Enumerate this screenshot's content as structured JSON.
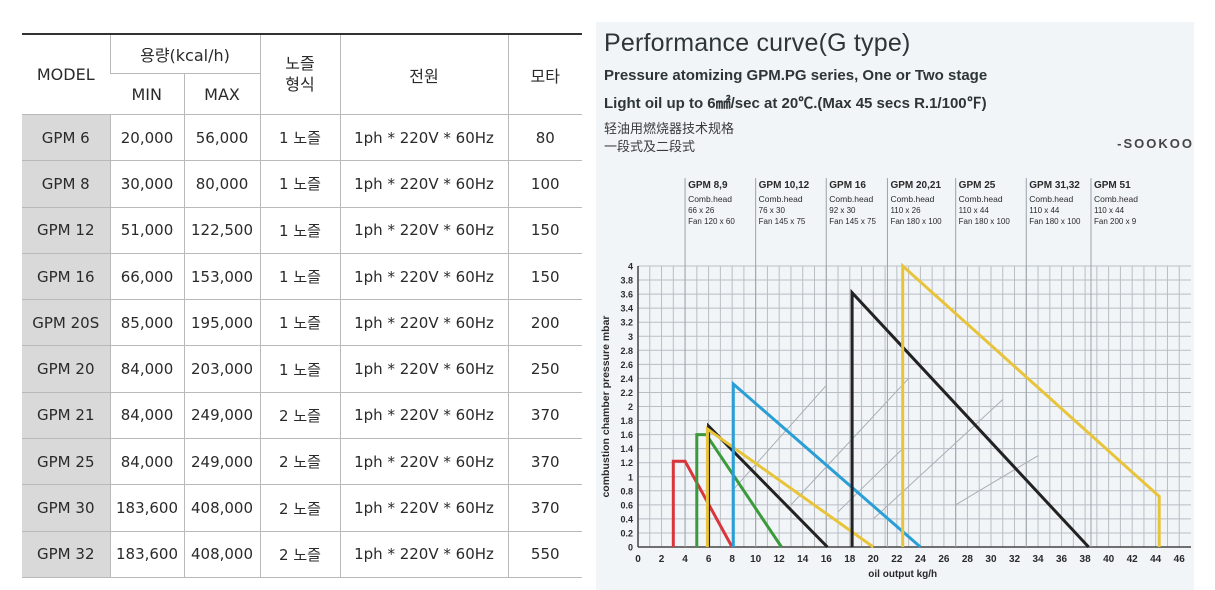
{
  "table": {
    "header": {
      "model": "MODEL",
      "capacity": "용량(kcal/h)",
      "min": "MIN",
      "max": "MAX",
      "nozzle": "노즐\n형식",
      "power": "전원",
      "motor": "모타"
    },
    "rows": [
      {
        "model": "GPM 6",
        "min": "20,000",
        "max": "56,000",
        "nozzle": "1 노즐",
        "power": "1ph * 220V * 60Hz",
        "motor": "80"
      },
      {
        "model": "GPM 8",
        "min": "30,000",
        "max": "80,000",
        "nozzle": "1 노즐",
        "power": "1ph * 220V * 60Hz",
        "motor": "100"
      },
      {
        "model": "GPM 12",
        "min": "51,000",
        "max": "122,500",
        "nozzle": "1 노즐",
        "power": "1ph * 220V * 60Hz",
        "motor": "150"
      },
      {
        "model": "GPM 16",
        "min": "66,000",
        "max": "153,000",
        "nozzle": "1 노즐",
        "power": "1ph * 220V * 60Hz",
        "motor": "150"
      },
      {
        "model": "GPM 20S",
        "min": "85,000",
        "max": "195,000",
        "nozzle": "1 노즐",
        "power": "1ph * 220V * 60Hz",
        "motor": "200"
      },
      {
        "model": "GPM 20",
        "min": "84,000",
        "max": "203,000",
        "nozzle": "1 노즐",
        "power": "1ph * 220V * 60Hz",
        "motor": "250"
      },
      {
        "model": "GPM 21",
        "min": "84,000",
        "max": "249,000",
        "nozzle": "2 노즐",
        "power": "1ph * 220V * 60Hz",
        "motor": "370"
      },
      {
        "model": "GPM 25",
        "min": "84,000",
        "max": "249,000",
        "nozzle": "2 노즐",
        "power": "1ph * 220V * 60Hz",
        "motor": "370"
      },
      {
        "model": "GPM 30",
        "min": "183,600",
        "max": "408,000",
        "nozzle": "2 노즐",
        "power": "1ph * 220V * 60Hz",
        "motor": "370"
      },
      {
        "model": "GPM 32",
        "min": "183,600",
        "max": "408,000",
        "nozzle": "2 노즐",
        "power": "1ph * 220V * 60Hz",
        "motor": "550"
      }
    ]
  },
  "chart": {
    "title": "Performance curve(G type)",
    "subtitle1": "Pressure atomizing GPM.PG series, One or Two stage",
    "subtitle2": "Light oil up to 6㎟/sec at 20℃.(Max 45 secs R.1/100℉)",
    "chinese1": "轻油用燃烧器技术规格",
    "chinese2": "一段式及二段式",
    "brand": "-SOOKOO"
  },
  "chart_data": {
    "type": "line",
    "xlabel": "oil output kg/h",
    "ylabel": "combustion chamber pressure mbar",
    "xlim": [
      0,
      47
    ],
    "ylim": [
      0,
      4
    ],
    "x_ticks": [
      0,
      2,
      4,
      6,
      8,
      10,
      12,
      14,
      16,
      18,
      20,
      22,
      24,
      26,
      28,
      30,
      32,
      34,
      36,
      38,
      40,
      42,
      44,
      46
    ],
    "y_ticks": [
      0,
      0.2,
      0.4,
      0.6,
      0.8,
      1.0,
      1.2,
      1.4,
      1.6,
      1.8,
      2,
      2.2,
      2.4,
      2.6,
      2.8,
      3,
      3.2,
      3.4,
      3.6,
      3.8,
      4
    ],
    "model_bands": [
      {
        "name": "GPM 8,9",
        "head": "Comb.head",
        "dims": "66 x 26",
        "fan": "Fan 120 x 60",
        "x_start": 4
      },
      {
        "name": "GPM 10,12",
        "head": "Comb.head",
        "dims": "76 x 30",
        "fan": "Fan 145 x 75",
        "x_start": 10
      },
      {
        "name": "GPM 16",
        "head": "Comb.head",
        "dims": "92 x 30",
        "fan": "Fan 145 x 75",
        "x_start": 16
      },
      {
        "name": "GPM 20,21",
        "head": "Comb.head",
        "dims": "110 x 26",
        "fan": "Fan 180 x 100",
        "x_start": 21.2
      },
      {
        "name": "GPM 25",
        "head": "Comb.head",
        "dims": "110 x 44",
        "fan": "Fan 180 x 100",
        "x_start": 27
      },
      {
        "name": "GPM 31,32",
        "head": "Comb.head",
        "dims": "110 x 44",
        "fan": "Fan 180 x 100",
        "x_start": 33
      },
      {
        "name": "GPM 51",
        "head": "Comb.head",
        "dims": "110 x 44",
        "fan": "Fan 200 x 9",
        "x_start": 38.5
      }
    ],
    "series": [
      {
        "name": "curve-red",
        "color": "#d9363c",
        "points": [
          [
            3,
            0
          ],
          [
            3,
            1.22
          ],
          [
            4,
            1.22
          ],
          [
            8,
            0
          ]
        ]
      },
      {
        "name": "curve-green",
        "color": "#3b9a3b",
        "points": [
          [
            5,
            0
          ],
          [
            5,
            1.6
          ],
          [
            5.8,
            1.6
          ],
          [
            12.2,
            0
          ]
        ]
      },
      {
        "name": "curve-black-small",
        "color": "#222222",
        "points": [
          [
            6,
            0
          ],
          [
            6,
            1.72
          ],
          [
            16.1,
            0
          ]
        ]
      },
      {
        "name": "curve-yellow-small",
        "color": "#e8c43a",
        "points": [
          [
            5.9,
            0
          ],
          [
            5.9,
            1.68
          ],
          [
            20,
            0
          ]
        ]
      },
      {
        "name": "curve-blue",
        "color": "#2a9fd6",
        "points": [
          [
            8.1,
            0
          ],
          [
            8.1,
            2.32
          ],
          [
            24,
            0
          ]
        ]
      },
      {
        "name": "curve-black-large",
        "color": "#222222",
        "points": [
          [
            18.2,
            0
          ],
          [
            18.2,
            3.62
          ],
          [
            38.3,
            0
          ]
        ]
      },
      {
        "name": "curve-yellow-large",
        "color": "#e8c43a",
        "points": [
          [
            22.5,
            0
          ],
          [
            22.5,
            4.0
          ],
          [
            44.3,
            0.72
          ],
          [
            44.3,
            0
          ]
        ]
      }
    ],
    "gray_diagonals": [
      [
        [
          8,
          0.8
        ],
        [
          16,
          2.3
        ]
      ],
      [
        [
          13,
          0.6
        ],
        [
          23,
          2.4
        ]
      ],
      [
        [
          17,
          0.5
        ],
        [
          22.5,
          1.4
        ]
      ],
      [
        [
          20,
          0.4
        ],
        [
          31,
          2.1
        ]
      ],
      [
        [
          27,
          0.6
        ],
        [
          34,
          1.3
        ]
      ]
    ]
  }
}
